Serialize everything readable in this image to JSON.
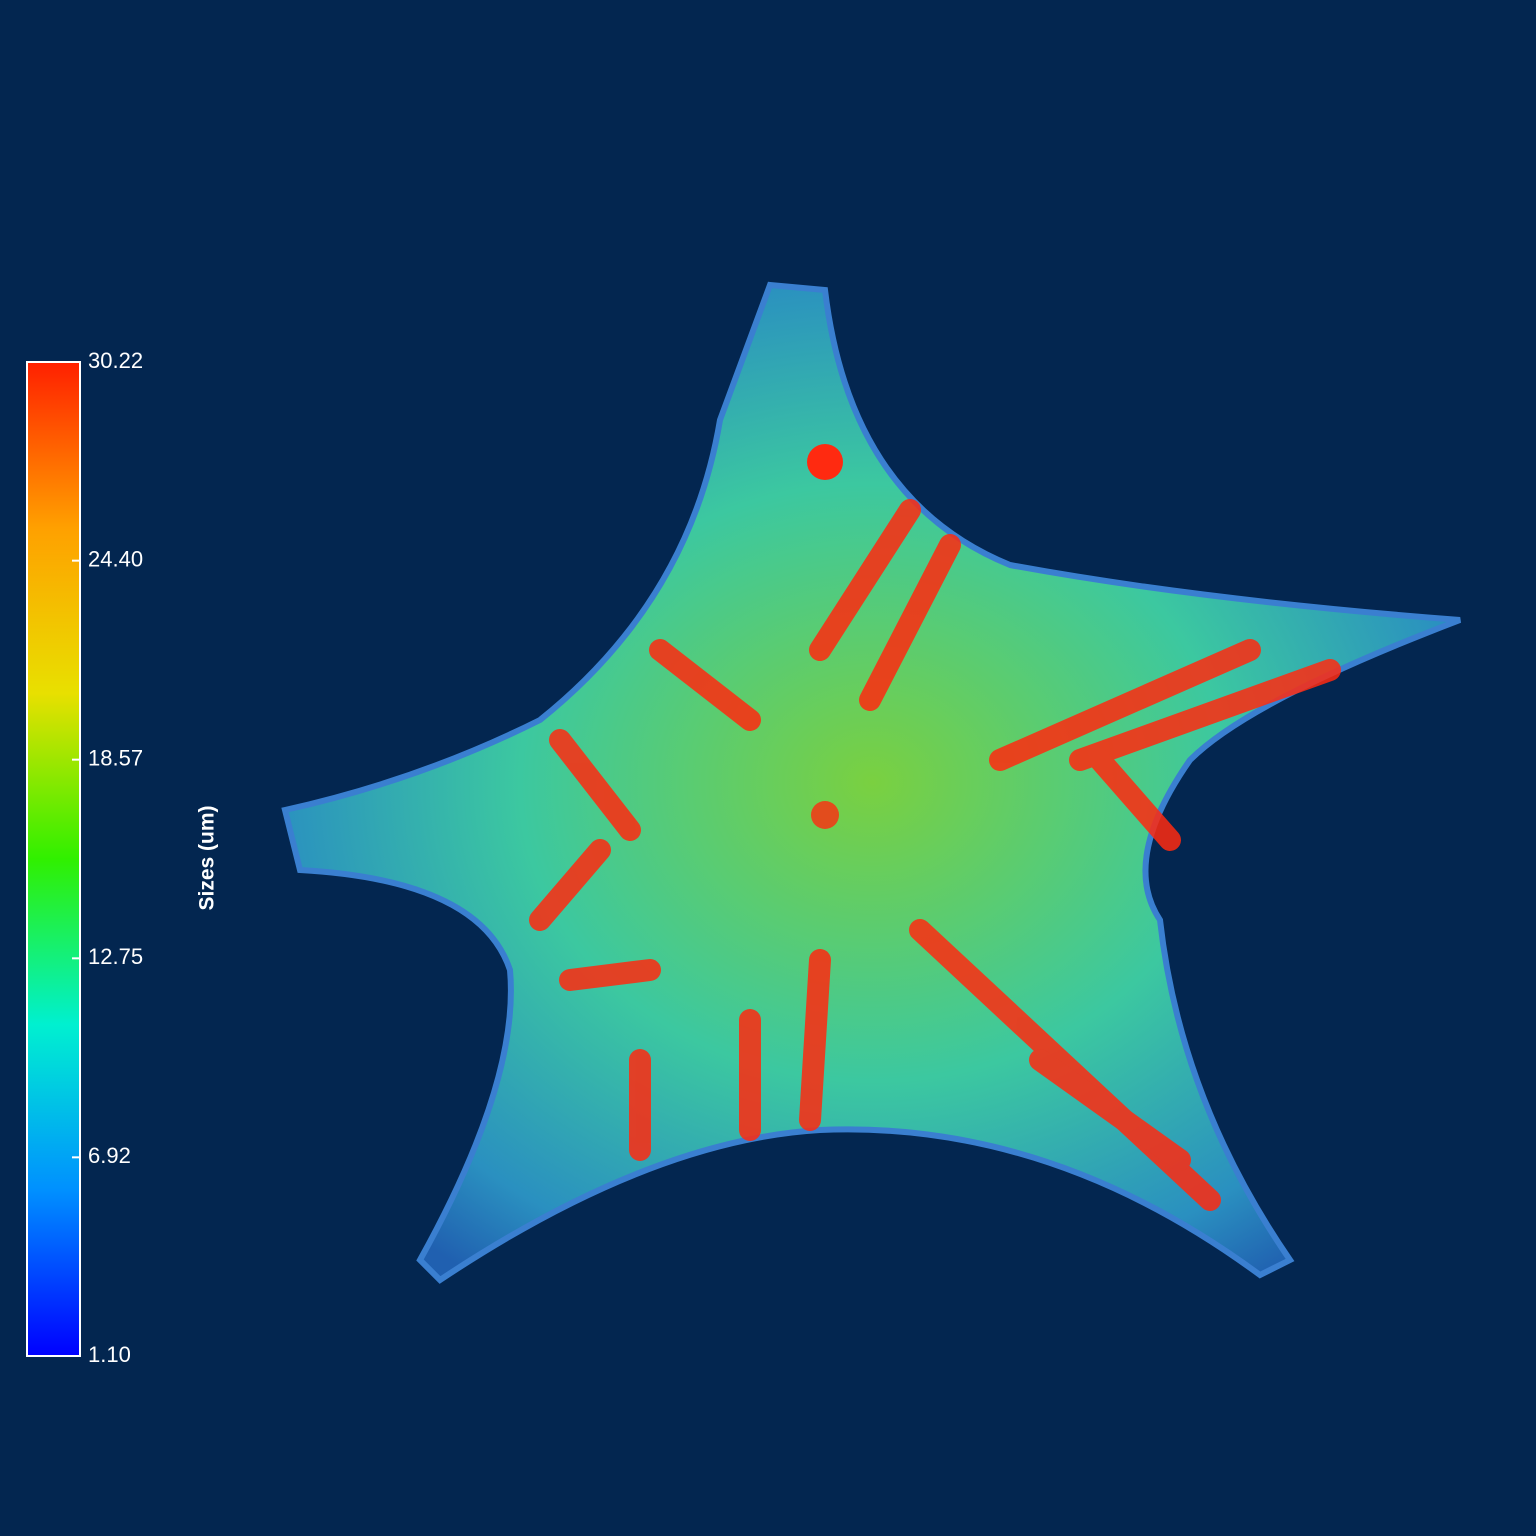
{
  "chart_data": {
    "type": "colorbar",
    "label": "Sizes (um)",
    "clim": [
      1.1,
      30.22
    ],
    "ticks": [
      30.22,
      {
        "value": 24.4,
        "label": "24.40"
      },
      18.57,
      12.75,
      6.92,
      {
        "value": 1.1,
        "label": "1.10"
      }
    ],
    "colormap": [
      "#0000ff",
      "#0090ff",
      "#00f0d0",
      "#30f000",
      "#e8e000",
      "#ffa000",
      "#ff2000"
    ]
  }
}
